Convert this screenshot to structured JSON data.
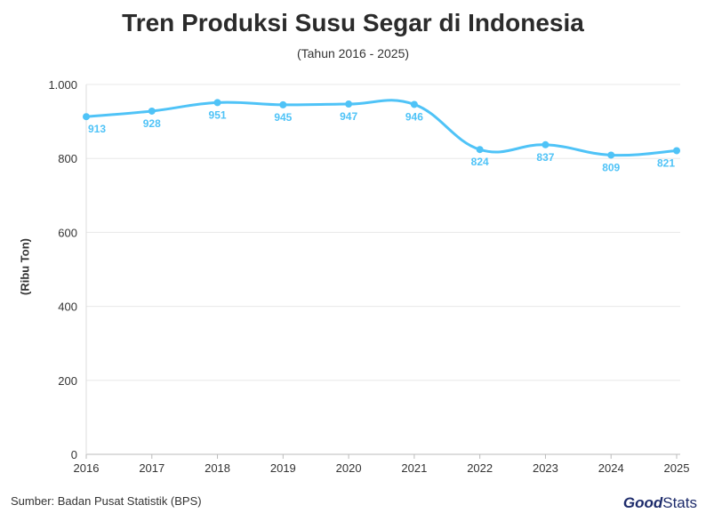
{
  "chart_data": {
    "type": "line",
    "title": "Tren Produksi Susu Segar di Indonesia",
    "subtitle": "(Tahun 2016 - 2025)",
    "ylabel": "(Ribu Ton)",
    "xlabel": "",
    "categories": [
      "2016",
      "2017",
      "2018",
      "2019",
      "2020",
      "2021",
      "2022",
      "2023",
      "2024",
      "2025"
    ],
    "series": [
      {
        "values": [
          913,
          928,
          951,
          945,
          947,
          946,
          824,
          837,
          809,
          821
        ],
        "color": "#4fc3f7"
      }
    ],
    "ylim": [
      0,
      1000
    ],
    "yticks": [
      0,
      200,
      400,
      600,
      800,
      1000
    ],
    "ytick_labels": [
      "0",
      "200",
      "400",
      "600",
      "800",
      "1.000"
    ],
    "grid": true
  },
  "footer": {
    "source": "Sumber: Badan Pusat Statistik (BPS)",
    "logo_good": "Good",
    "logo_stats": "Stats"
  }
}
